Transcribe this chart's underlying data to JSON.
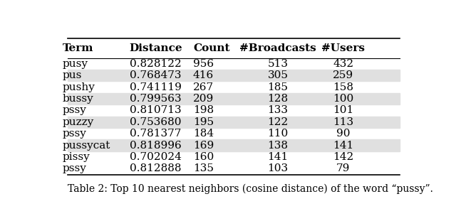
{
  "columns": [
    "Term",
    "Distance",
    "Count",
    "#Broadcasts",
    "#Users"
  ],
  "rows": [
    [
      "pusy",
      "0.828122",
      "956",
      "513",
      "432"
    ],
    [
      "pus",
      "0.768473",
      "416",
      "305",
      "259"
    ],
    [
      "pushy",
      "0.741119",
      "267",
      "185",
      "158"
    ],
    [
      "bussy",
      "0.799563",
      "209",
      "128",
      "100"
    ],
    [
      "pssy",
      "0.810713",
      "198",
      "133",
      "101"
    ],
    [
      "puzzy",
      "0.753680",
      "195",
      "122",
      "113"
    ],
    [
      "pssy",
      "0.781377",
      "184",
      "110",
      "90"
    ],
    [
      "pussycat",
      "0.818996",
      "169",
      "138",
      "141"
    ],
    [
      "pissy",
      "0.702024",
      "160",
      "141",
      "142"
    ],
    [
      "pssy",
      "0.812888",
      "135",
      "103",
      "79"
    ]
  ],
  "caption": "Table 2: Top 10 nearest neighbors (cosine distance) of the word “pussy”.",
  "shaded_rows": [
    1,
    3,
    5,
    7
  ],
  "shade_color": "#e0e0e0",
  "bg_color": "#ffffff",
  "font_size": 11,
  "caption_font_size": 10
}
